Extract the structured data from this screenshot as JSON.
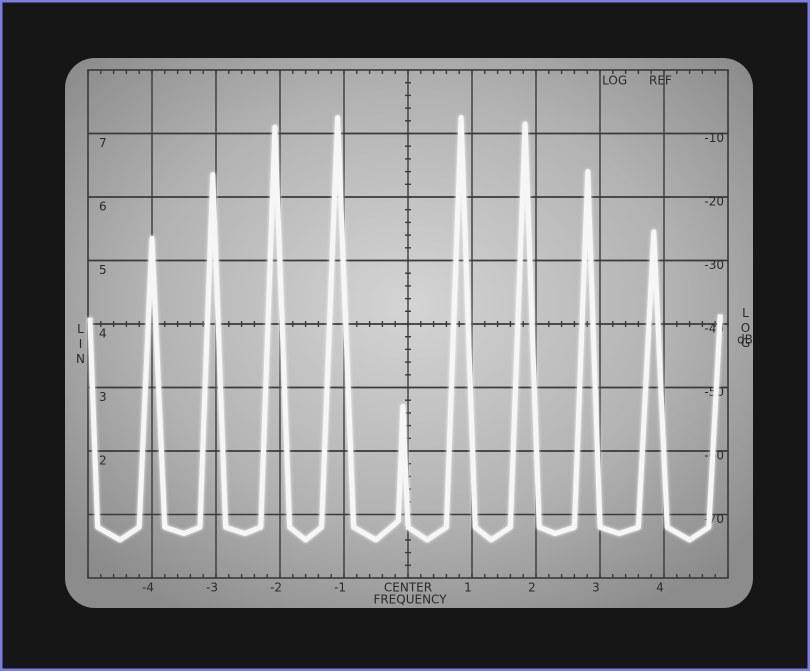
{
  "chart_data": {
    "type": "line",
    "top_right_label": "LOG REF",
    "y_label": "LIN",
    "y2_label": "LOG",
    "y2_unit": "dB",
    "x_label": "FREQUENCY",
    "x": [
      -4.97,
      -4.85,
      -4.5,
      -4.2,
      -4.0,
      -3.8,
      -3.5,
      -3.25,
      -3.05,
      -2.85,
      -2.55,
      -2.3,
      -2.08,
      -1.85,
      -1.6,
      -1.35,
      -1.1,
      -0.85,
      -0.5,
      -0.15,
      -0.08,
      0.0,
      0.3,
      0.6,
      0.83,
      1.05,
      1.3,
      1.6,
      1.83,
      2.05,
      2.3,
      2.6,
      2.81,
      3.0,
      3.3,
      3.6,
      3.84,
      4.05,
      4.4,
      4.7,
      4.88
    ],
    "values": [
      4.1,
      0.8,
      0.6,
      0.8,
      5.35,
      0.8,
      0.7,
      0.8,
      6.35,
      0.8,
      0.7,
      0.8,
      7.1,
      0.8,
      0.6,
      0.8,
      7.25,
      0.8,
      0.6,
      0.9,
      2.7,
      0.8,
      0.6,
      0.8,
      7.25,
      0.8,
      0.6,
      0.8,
      7.15,
      0.8,
      0.7,
      0.8,
      6.4,
      0.8,
      0.7,
      0.8,
      5.45,
      0.8,
      0.6,
      0.8,
      4.15
    ],
    "color": "#f6f6f6",
    "xlim": [
      -5,
      5
    ],
    "xticks": [
      -4,
      -3,
      -2,
      -1,
      {
        "value": 0,
        "label": "CENTER"
      },
      1,
      2,
      3,
      4
    ],
    "ylim": [
      0,
      8
    ],
    "yticks": [
      2,
      3,
      4,
      5,
      6,
      7
    ],
    "y2lim": [
      -80,
      0
    ],
    "y2ticks": [
      -10,
      -20,
      -30,
      -40,
      -50,
      -60,
      -70
    ],
    "grid": true
  }
}
